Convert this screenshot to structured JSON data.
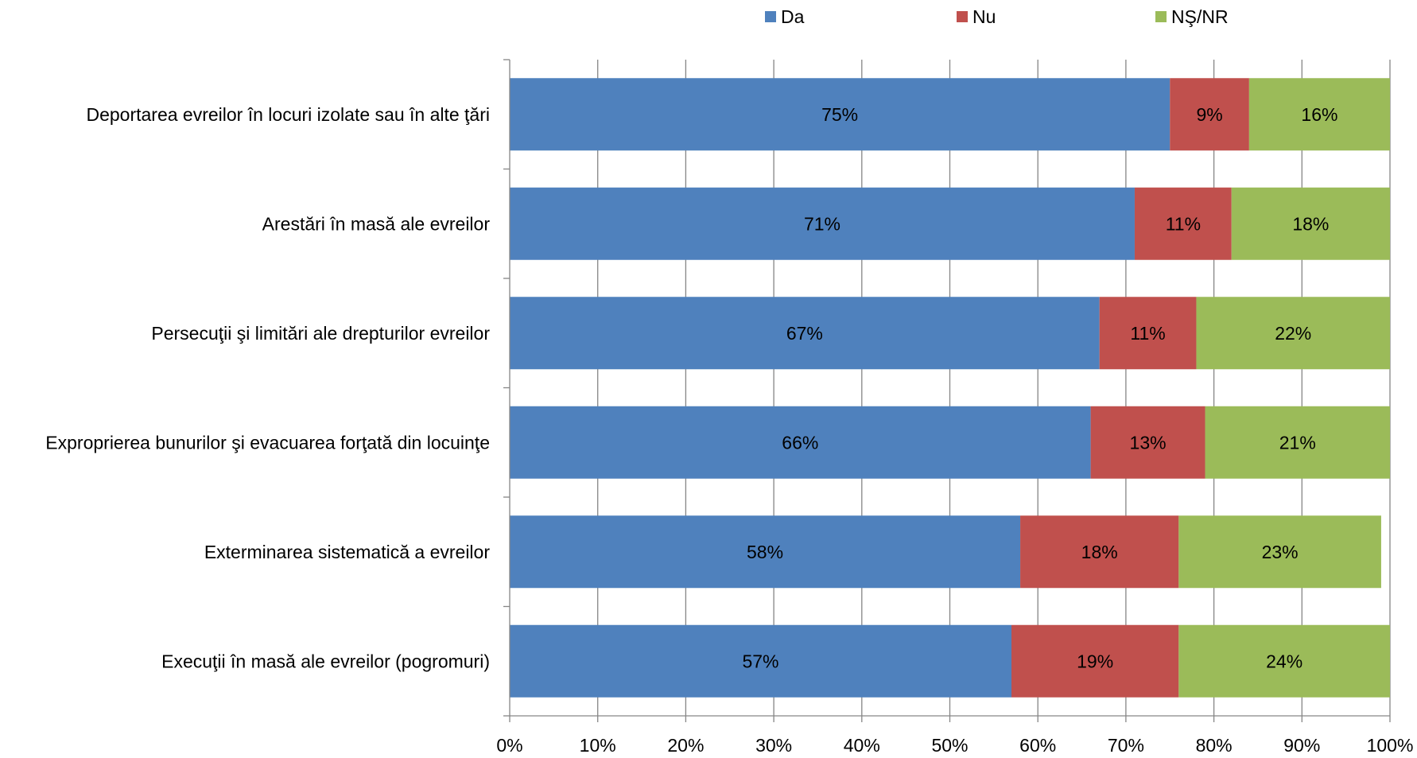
{
  "chart_data": {
    "type": "bar",
    "orientation": "horizontal",
    "stacked": true,
    "percent_stacked": true,
    "title": "",
    "xlabel": "",
    "ylabel": "",
    "xlim": [
      0,
      100
    ],
    "x_ticks": [
      "0%",
      "10%",
      "20%",
      "30%",
      "40%",
      "50%",
      "60%",
      "70%",
      "80%",
      "90%",
      "100%"
    ],
    "grid": true,
    "legend_position": "top",
    "categories": [
      "Deportarea evreilor în locuri izolate sau în alte ţări",
      "Arestări în masă ale evreilor",
      "Persecuţii şi limitări ale drepturilor evreilor",
      "Exproprierea bunurilor şi evacuarea forţată din locuinţe",
      "Exterminarea sistematică a evreilor",
      "Execuţii în masă ale evreilor (pogromuri)"
    ],
    "series": [
      {
        "name": "Da",
        "color": "#4F81BD",
        "values": [
          75,
          71,
          67,
          66,
          58,
          57
        ],
        "labels": [
          "75%",
          "71%",
          "67%",
          "66%",
          "58%",
          "57%"
        ]
      },
      {
        "name": "Nu",
        "color": "#C0504D",
        "values": [
          9,
          11,
          11,
          13,
          18,
          19
        ],
        "labels": [
          "9%",
          "11%",
          "11%",
          "13%",
          "18%",
          "19%"
        ]
      },
      {
        "name": "NŞ/NR",
        "color": "#9BBB59",
        "values": [
          16,
          18,
          22,
          21,
          23,
          24
        ],
        "labels": [
          "16%",
          "18%",
          "22%",
          "21%",
          "23%",
          "24%"
        ]
      }
    ]
  }
}
